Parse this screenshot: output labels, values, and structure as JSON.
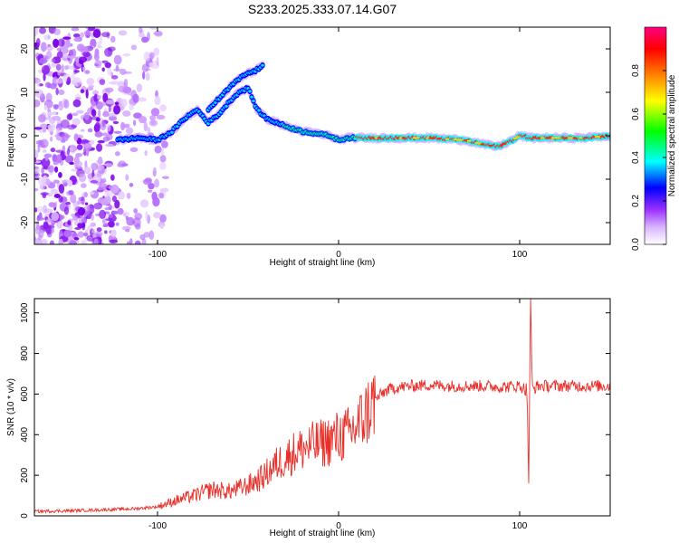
{
  "figure_title": "S233.2025.333.07.14.G07",
  "chart_data": [
    {
      "type": "heatmap",
      "title": "S233.2025.333.07.14.G07",
      "xlabel": "Height of straight line (km)",
      "ylabel": "Frequency (Hz)",
      "xlim": [
        -168,
        150
      ],
      "ylim": [
        -25,
        25
      ],
      "xticks": [
        -100,
        0,
        100
      ],
      "yticks": [
        -20,
        -10,
        0,
        10,
        20
      ],
      "colorbar": {
        "label": "Normalized spectral amplitude",
        "range": [
          0,
          1
        ],
        "ticks": [
          0.0,
          0.2,
          0.4,
          0.6,
          0.8
        ],
        "colors": [
          "#ffffff",
          "#9b30ff",
          "#0000ff",
          "#00ffff",
          "#00ff00",
          "#ffff00",
          "#ff8000",
          "#ff0000",
          "#ff0080"
        ]
      },
      "ridge": {
        "description": "dominant frequency track (Hz) vs height (km)",
        "x": [
          -122,
          -110,
          -100,
          -92,
          -85,
          -78,
          -72,
          -66,
          -60,
          -55,
          -50,
          -45,
          -40,
          -34,
          -28,
          -20,
          -12,
          -5,
          0,
          5,
          15,
          30,
          50,
          70,
          80,
          88,
          96,
          100,
          106,
          120,
          135,
          150
        ],
        "y": [
          -1,
          -0.5,
          -1,
          1,
          4,
          6,
          3,
          5,
          8,
          10,
          11,
          6,
          4,
          3,
          2,
          1,
          0.5,
          0,
          -1,
          -0.5,
          -0.5,
          -0.5,
          -0.5,
          -1,
          -2,
          -2.5,
          -1,
          0,
          -0.5,
          -0.5,
          -0.5,
          0
        ]
      },
      "ridge_upper_branch": {
        "x": [
          -72,
          -65,
          -58,
          -52,
          -46,
          -42
        ],
        "y": [
          6,
          9,
          12,
          14,
          15,
          16
        ]
      },
      "noise_region_x": [
        -168,
        -95
      ]
    },
    {
      "type": "line",
      "xlabel": "Height of straight line (km)",
      "ylabel": "SNR (10 * v/v)",
      "xlim": [
        -168,
        150
      ],
      "ylim": [
        0,
        1070
      ],
      "xticks": [
        -100,
        0,
        100
      ],
      "yticks": [
        0,
        200,
        400,
        600,
        800,
        1000
      ],
      "series": [
        {
          "name": "SNR",
          "color": "#e8302a",
          "x": [
            -168,
            -150,
            -130,
            -113,
            -100,
            -90,
            -80,
            -70,
            -60,
            -50,
            -42,
            -35,
            -30,
            -25,
            -20,
            -15,
            -10,
            -5,
            0,
            5,
            10,
            15,
            20,
            25,
            30,
            40,
            50,
            60,
            70,
            80,
            90,
            100,
            104,
            105,
            106,
            107,
            110,
            120,
            130,
            140,
            150
          ],
          "values": [
            22,
            25,
            30,
            35,
            45,
            75,
            100,
            130,
            120,
            150,
            190,
            250,
            280,
            310,
            330,
            345,
            355,
            370,
            390,
            400,
            440,
            500,
            570,
            610,
            630,
            640,
            645,
            640,
            640,
            640,
            635,
            640,
            620,
            180,
            1060,
            620,
            640,
            640,
            640,
            640,
            640
          ]
        }
      ]
    }
  ]
}
